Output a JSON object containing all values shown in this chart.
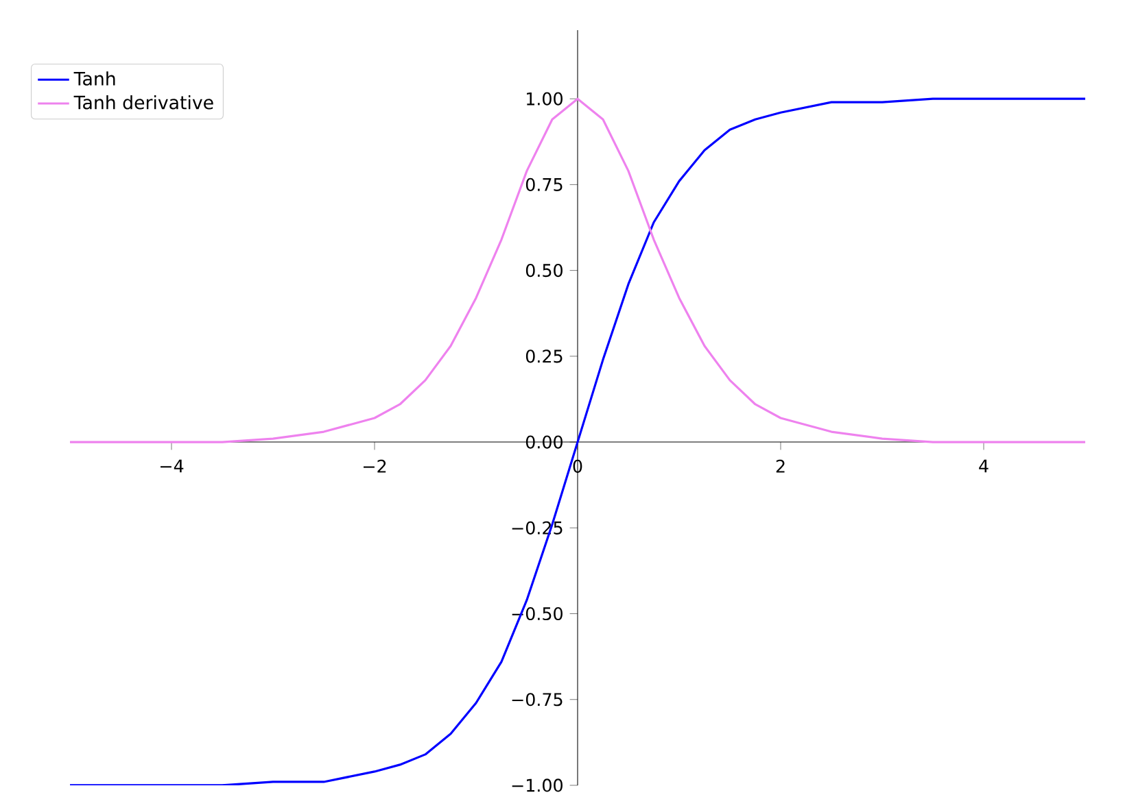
{
  "chart_data": {
    "type": "line",
    "x": [
      -5,
      -4,
      -3.5,
      -3,
      -2.5,
      -2,
      -1.75,
      -1.5,
      -1.25,
      -1,
      -0.75,
      -0.5,
      -0.25,
      0,
      0.25,
      0.5,
      0.75,
      1,
      1.25,
      1.5,
      1.75,
      2,
      2.5,
      3,
      3.5,
      4,
      5
    ],
    "series": [
      {
        "name": "Tanh",
        "color": "#0000ff",
        "values": [
          -1.0,
          -1.0,
          -1.0,
          -0.99,
          -0.99,
          -0.96,
          -0.94,
          -0.91,
          -0.85,
          -0.76,
          -0.64,
          -0.46,
          -0.24,
          0,
          0.24,
          0.46,
          0.64,
          0.76,
          0.85,
          0.91,
          0.94,
          0.96,
          0.99,
          0.99,
          1.0,
          1.0,
          1.0
        ]
      },
      {
        "name": "Tanh derivative",
        "color": "#ee82ee",
        "values": [
          0.0,
          0.0,
          0.0,
          0.01,
          0.03,
          0.07,
          0.11,
          0.18,
          0.28,
          0.42,
          0.59,
          0.79,
          0.94,
          1.0,
          0.94,
          0.79,
          0.59,
          0.42,
          0.28,
          0.18,
          0.11,
          0.07,
          0.03,
          0.01,
          0.0,
          0.0,
          0.0
        ]
      }
    ],
    "xlim": [
      -5,
      5
    ],
    "ylim": [
      -1,
      1.2
    ],
    "xticks": [
      {
        "value": -4,
        "label": "−4"
      },
      {
        "value": -2,
        "label": "−2"
      },
      {
        "value": 0,
        "label": "0"
      },
      {
        "value": 2,
        "label": "2"
      },
      {
        "value": 4,
        "label": "4"
      }
    ],
    "yticks": [
      {
        "value": -1,
        "label": "−1.00"
      },
      {
        "value": -0.75,
        "label": "−0.75"
      },
      {
        "value": -0.5,
        "label": "−0.50"
      },
      {
        "value": -0.25,
        "label": "−0.25"
      },
      {
        "value": 0,
        "label": "0.00"
      },
      {
        "value": 0.25,
        "label": "0.25"
      },
      {
        "value": 0.5,
        "label": "0.50"
      },
      {
        "value": 0.75,
        "label": "0.75"
      },
      {
        "value": 1,
        "label": "1.00"
      }
    ],
    "legend": "top left"
  }
}
